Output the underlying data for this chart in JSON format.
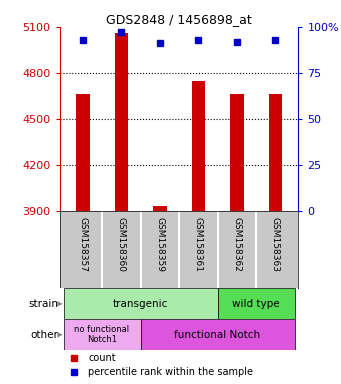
{
  "title": "GDS2848 / 1456898_at",
  "samples": [
    "GSM158357",
    "GSM158360",
    "GSM158359",
    "GSM158361",
    "GSM158362",
    "GSM158363"
  ],
  "counts": [
    4660,
    5060,
    3930,
    4750,
    4660,
    4660
  ],
  "percentiles": [
    93,
    97,
    91,
    93,
    92,
    93
  ],
  "ylim": [
    3900,
    5100
  ],
  "yticks": [
    3900,
    4200,
    4500,
    4800,
    5100
  ],
  "grid_lines": [
    4200,
    4500,
    4800
  ],
  "right_yticks": [
    0,
    25,
    50,
    75,
    100
  ],
  "bar_color": "#cc0000",
  "dot_color": "#0000cc",
  "strain_color_transgenic": "#aaeaaa",
  "strain_color_wildtype": "#55dd55",
  "other_color_nofunc": "#eeaaee",
  "other_color_func": "#dd55dd",
  "legend_count_color": "#cc0000",
  "legend_pct_color": "#0000cc",
  "left_axis_color": "#cc0000",
  "right_axis_color": "#0000cc",
  "tick_bg_color": "#c8c8c8",
  "bar_width": 0.35,
  "strain_label_transgenic": "transgenic",
  "strain_label_wildtype": "wild type",
  "other_label_nofunc": "no functional\nNotch1",
  "other_label_func": "functional Notch",
  "strain_text": "strain",
  "other_text": "other",
  "legend_count_text": "count",
  "legend_pct_text": "percentile rank within the sample"
}
